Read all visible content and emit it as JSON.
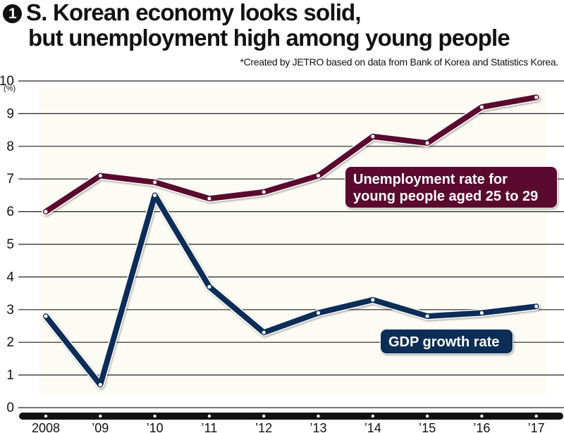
{
  "header": {
    "badge": "1",
    "title_line1": "S. Korean economy looks solid,",
    "title_line2": "but unemployment high among young people",
    "note": "*Created by JETRO based on data from Bank of Korea and Statistics Korea."
  },
  "colors": {
    "unemployment": "#5a0a2e",
    "gdp": "#0c2d57",
    "panel": "#fdfcf4",
    "axis": "#111111"
  },
  "chart_data": {
    "type": "line",
    "title": "S. Korean economy looks solid, but unemployment high among young people",
    "xlabel": "",
    "ylabel": "(%)",
    "ylim": [
      0,
      10
    ],
    "yticks": [
      "0",
      "1",
      "2",
      "3",
      "4",
      "5",
      "6",
      "7",
      "8",
      "9",
      "10"
    ],
    "categories": [
      "2008",
      "’09",
      "’10",
      "’11",
      "’12",
      "’13",
      "’14",
      "’15",
      "’16",
      "’17"
    ],
    "grid": true,
    "series": [
      {
        "name": "Unemployment rate for young people aged 25 to 29",
        "label_lines": [
          "Unemployment rate for",
          "young people aged 25 to 29"
        ],
        "values": [
          6.0,
          7.1,
          6.9,
          6.4,
          6.6,
          7.1,
          8.3,
          8.1,
          9.2,
          9.5
        ]
      },
      {
        "name": "GDP growth rate",
        "label_lines": [
          "GDP growth rate"
        ],
        "values": [
          2.8,
          0.7,
          6.5,
          3.7,
          2.3,
          2.9,
          3.3,
          2.8,
          2.9,
          3.1
        ]
      }
    ],
    "legend": "inline-labels"
  }
}
